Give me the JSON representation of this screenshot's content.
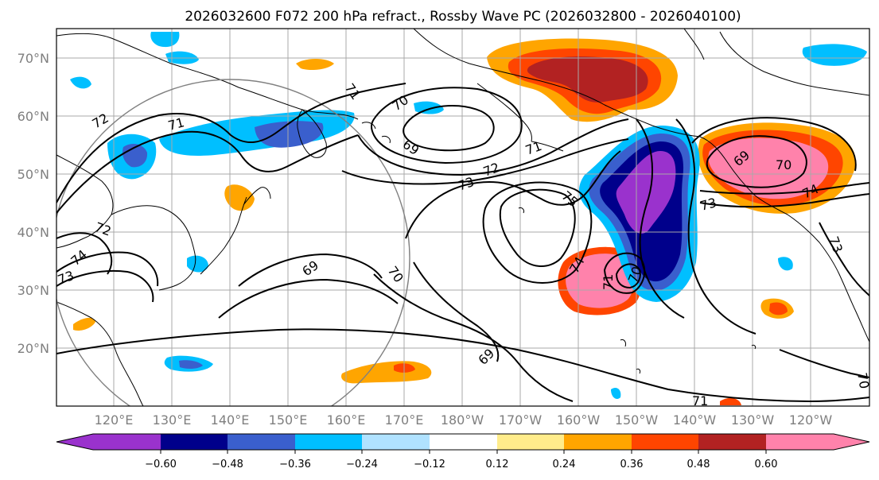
{
  "title": "2026032600 F072 200 hPa refract., Rossby Wave PC (2026032800 - 2026040100)",
  "lat_labels": [
    "70°N",
    "60°N",
    "50°N",
    "40°N",
    "30°N",
    "20°N"
  ],
  "lon_labels": [
    "120°E",
    "130°E",
    "140°E",
    "150°E",
    "160°E",
    "170°E",
    "180°W",
    "170°W",
    "160°W",
    "150°W",
    "140°W",
    "130°W",
    "120°W"
  ],
  "colorbar": {
    "tick_labels": [
      "−0.60",
      "−0.48",
      "−0.36",
      "−0.24",
      "−0.12",
      "0.12",
      "0.24",
      "0.36",
      "0.48",
      "0.60"
    ],
    "colors": [
      "#9a32cd",
      "#00008b",
      "#3a5fcd",
      "#00bfff",
      "#b0e2ff",
      "#ffffff",
      "#ffec8b",
      "#ffa500",
      "#ff4500",
      "#b22222",
      "#ff82ab"
    ]
  },
  "contour_labels": {
    "c72": "72",
    "c71a": "71",
    "c71b": "71",
    "c70a": "70",
    "c69a": "69",
    "c69b": "69",
    "c70b": "70",
    "c71c": "71",
    "c73a": "73",
    "c72b": "72",
    "c75": "75",
    "c74a": "74",
    "c71d": "71",
    "c70c": "70",
    "c69c": "69",
    "c70d": "70",
    "c73b": "73",
    "c74b": "74",
    "c73c": "73",
    "c72c": "72",
    "c74c": "74",
    "c73d": "73",
    "c69d": "69",
    "c71e": "71",
    "c70e": "70"
  }
}
